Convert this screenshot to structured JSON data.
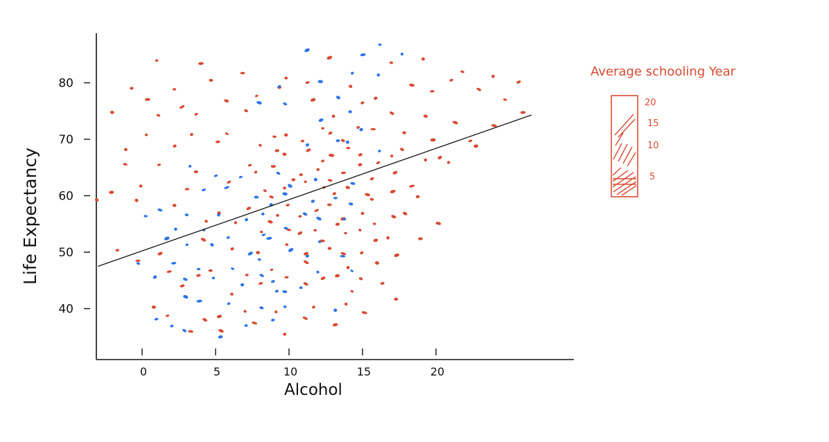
{
  "chart_data": {
    "type": "scatter",
    "title": "",
    "xlabel": "Alcohol",
    "ylabel": "Life Expectancy",
    "x_ticks": [
      0,
      5,
      10,
      15,
      20
    ],
    "x_tick_labels": [
      "0",
      "5",
      "10",
      "15",
      "20"
    ],
    "y_ticks": [
      40,
      50,
      60,
      70,
      80
    ],
    "y_tick_labels": [
      "40",
      "50",
      "60",
      "70",
      "80"
    ],
    "xlim": [
      -3,
      30
    ],
    "ylim": [
      33,
      89
    ],
    "grid": false,
    "legend": {
      "title": "Average schooling Year",
      "placement": "right",
      "ticks": [
        "20",
        "15",
        "10",
        "5"
      ],
      "color": "#d84a32"
    },
    "colors": {
      "red": "#d84a32",
      "blue": "#2d74e8",
      "line": "#111111"
    },
    "trendline": {
      "x": [
        -3,
        26.5
      ],
      "y": [
        47.5,
        74.3
      ]
    },
    "point_color_meaning": "red = higher average schooling years (lower values near 5 are more densely shaded), blue = lower schooling",
    "series": [
      {
        "color": "red",
        "points": [
          [
            1,
            84
          ],
          [
            4,
            83
          ],
          [
            7,
            82
          ],
          [
            10,
            81
          ],
          [
            13,
            84
          ],
          [
            17,
            84
          ],
          [
            19,
            84
          ],
          [
            22,
            82
          ],
          [
            24,
            81
          ],
          [
            -1,
            79
          ],
          [
            2,
            79
          ],
          [
            5,
            80
          ],
          [
            9,
            79
          ],
          [
            11,
            80
          ],
          [
            14,
            79
          ],
          [
            18,
            80
          ],
          [
            21,
            80
          ],
          [
            23,
            79
          ],
          [
            26,
            80
          ],
          [
            0,
            77
          ],
          [
            3,
            76
          ],
          [
            6,
            77
          ],
          [
            8,
            78
          ],
          [
            12,
            77
          ],
          [
            15,
            76
          ],
          [
            16,
            77
          ],
          [
            20,
            78
          ],
          [
            25,
            77
          ],
          [
            -2,
            75
          ],
          [
            1,
            74
          ],
          [
            4,
            74
          ],
          [
            7,
            75
          ],
          [
            13,
            74
          ],
          [
            17,
            75
          ],
          [
            19,
            74
          ],
          [
            21,
            73
          ],
          [
            24,
            72
          ],
          [
            26,
            75
          ],
          [
            0,
            71
          ],
          [
            3,
            71
          ],
          [
            6,
            71
          ],
          [
            9,
            70
          ],
          [
            10,
            71
          ],
          [
            11,
            70
          ],
          [
            12,
            72
          ],
          [
            13,
            71
          ],
          [
            14,
            70
          ],
          [
            15,
            72
          ],
          [
            16,
            72
          ],
          [
            18,
            71
          ],
          [
            20,
            70
          ],
          [
            22,
            70
          ],
          [
            23,
            69
          ],
          [
            -1,
            68
          ],
          [
            2,
            69
          ],
          [
            5,
            70
          ],
          [
            8,
            69
          ],
          [
            9,
            68
          ],
          [
            10,
            67
          ],
          [
            11,
            68
          ],
          [
            12,
            66
          ],
          [
            13,
            67
          ],
          [
            14,
            68
          ],
          [
            15,
            67
          ],
          [
            16,
            66
          ],
          [
            17,
            67
          ],
          [
            18,
            68
          ],
          [
            19,
            66
          ],
          [
            20,
            67
          ],
          [
            21,
            66
          ],
          [
            -1,
            66
          ],
          [
            1,
            65
          ],
          [
            4,
            64
          ],
          [
            7,
            65
          ],
          [
            8,
            64
          ],
          [
            9,
            65
          ],
          [
            10,
            63
          ],
          [
            11,
            64
          ],
          [
            12,
            65
          ],
          [
            13,
            63
          ],
          [
            14,
            64
          ],
          [
            15,
            65
          ],
          [
            16,
            63
          ],
          [
            17,
            64
          ],
          [
            18,
            62
          ],
          [
            -2,
            61
          ],
          [
            0,
            62
          ],
          [
            3,
            61
          ],
          [
            6,
            62
          ],
          [
            8,
            61
          ],
          [
            9,
            60
          ],
          [
            10,
            61
          ],
          [
            11,
            62
          ],
          [
            12,
            61
          ],
          [
            13,
            60
          ],
          [
            14,
            61
          ],
          [
            15,
            60
          ],
          [
            16,
            59
          ],
          [
            17,
            61
          ],
          [
            19,
            60
          ],
          [
            -3,
            59
          ],
          [
            0,
            59
          ],
          [
            2,
            58
          ],
          [
            5,
            57
          ],
          [
            7,
            58
          ],
          [
            9,
            57
          ],
          [
            10,
            58
          ],
          [
            11,
            56
          ],
          [
            12,
            57
          ],
          [
            13,
            58
          ],
          [
            14,
            56
          ],
          [
            15,
            57
          ],
          [
            16,
            55
          ],
          [
            17,
            56
          ],
          [
            18,
            57
          ],
          [
            20,
            55
          ],
          [
            4,
            55
          ],
          [
            6,
            55
          ],
          [
            8,
            54
          ],
          [
            9,
            55
          ],
          [
            10,
            54
          ],
          [
            11,
            53
          ],
          [
            12,
            54
          ],
          [
            13,
            55
          ],
          [
            14,
            53
          ],
          [
            15,
            54
          ],
          [
            16,
            52
          ],
          [
            17,
            53
          ],
          [
            19,
            52
          ],
          [
            -2,
            50
          ],
          [
            1,
            50
          ],
          [
            4,
            52
          ],
          [
            6,
            51
          ],
          [
            8,
            50
          ],
          [
            10,
            51
          ],
          [
            11,
            50
          ],
          [
            12,
            52
          ],
          [
            13,
            51
          ],
          [
            14,
            50
          ],
          [
            15,
            50
          ],
          [
            16,
            48
          ],
          [
            17,
            49
          ],
          [
            0,
            48
          ],
          [
            2,
            47
          ],
          [
            4,
            46
          ],
          [
            5,
            47
          ],
          [
            7,
            46
          ],
          [
            9,
            47
          ],
          [
            10,
            46
          ],
          [
            11,
            48
          ],
          [
            12,
            45
          ],
          [
            13,
            46
          ],
          [
            14,
            47
          ],
          [
            15,
            45
          ],
          [
            16,
            44
          ],
          [
            3,
            44
          ],
          [
            6,
            43
          ],
          [
            8,
            44
          ],
          [
            11,
            44
          ],
          [
            14,
            43
          ],
          [
            17,
            42
          ],
          [
            1,
            40
          ],
          [
            2,
            39
          ],
          [
            4,
            38
          ],
          [
            5,
            39
          ],
          [
            7,
            40
          ],
          [
            9,
            39
          ],
          [
            11,
            38
          ],
          [
            12,
            40
          ],
          [
            14,
            41
          ],
          [
            15,
            39
          ],
          [
            3,
            36
          ],
          [
            5,
            36
          ],
          [
            8,
            37
          ],
          [
            10,
            35
          ],
          [
            13,
            37
          ]
        ]
      },
      {
        "color": "blue",
        "points": [
          [
            11,
            86
          ],
          [
            16,
            87
          ],
          [
            15,
            85
          ],
          [
            18,
            85
          ],
          [
            14,
            82
          ],
          [
            16,
            81
          ],
          [
            9,
            79
          ],
          [
            12,
            80
          ],
          [
            13,
            77
          ],
          [
            8,
            76
          ],
          [
            10,
            76
          ],
          [
            14,
            75
          ],
          [
            12,
            73
          ],
          [
            15,
            72
          ],
          [
            13,
            70
          ],
          [
            11,
            69
          ],
          [
            14,
            69
          ],
          [
            16,
            68
          ],
          [
            3,
            65
          ],
          [
            5,
            64
          ],
          [
            7,
            63
          ],
          [
            9,
            64
          ],
          [
            10,
            62
          ],
          [
            12,
            63
          ],
          [
            14,
            62
          ],
          [
            4,
            61
          ],
          [
            6,
            61
          ],
          [
            8,
            60
          ],
          [
            10,
            60
          ],
          [
            12,
            59
          ],
          [
            13,
            60
          ],
          [
            14,
            59
          ],
          [
            1,
            57
          ],
          [
            3,
            57
          ],
          [
            5,
            57
          ],
          [
            7,
            56
          ],
          [
            8,
            57
          ],
          [
            9,
            58
          ],
          [
            11,
            57
          ],
          [
            12,
            56
          ],
          [
            14,
            56
          ],
          [
            0,
            56
          ],
          [
            2,
            54
          ],
          [
            4,
            54
          ],
          [
            6,
            53
          ],
          [
            8,
            53
          ],
          [
            9,
            52
          ],
          [
            10,
            54
          ],
          [
            12,
            52
          ],
          [
            2,
            52
          ],
          [
            3,
            51
          ],
          [
            5,
            51
          ],
          [
            7,
            50
          ],
          [
            8,
            49
          ],
          [
            10,
            50
          ],
          [
            11,
            49
          ],
          [
            14,
            49
          ],
          [
            0,
            48
          ],
          [
            2,
            48
          ],
          [
            4,
            47
          ],
          [
            6,
            47
          ],
          [
            8,
            46
          ],
          [
            9,
            45
          ],
          [
            12,
            46
          ],
          [
            14,
            47
          ],
          [
            1,
            46
          ],
          [
            3,
            45
          ],
          [
            5,
            45
          ],
          [
            7,
            44
          ],
          [
            9,
            43
          ],
          [
            10,
            43
          ],
          [
            11,
            44
          ],
          [
            3,
            42
          ],
          [
            4,
            41
          ],
          [
            6,
            41
          ],
          [
            8,
            40
          ],
          [
            10,
            40
          ],
          [
            13,
            40
          ],
          [
            1,
            38
          ],
          [
            2,
            37
          ],
          [
            3,
            36
          ],
          [
            5,
            35
          ],
          [
            7,
            37
          ],
          [
            9,
            38
          ]
        ]
      }
    ]
  }
}
